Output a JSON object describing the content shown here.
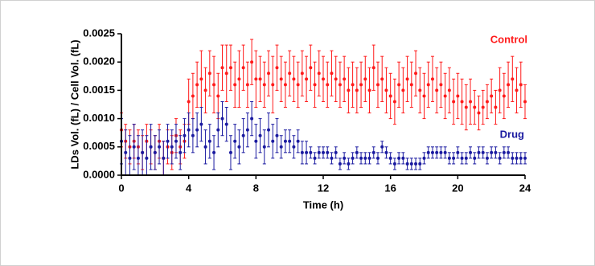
{
  "chart_data": {
    "type": "scatter-errorbar",
    "xlabel": "Time (h)",
    "ylabel": "LDs Vol. (fL) / Cell Vol. (fL)",
    "xlim": [
      0,
      24
    ],
    "xticks": [
      0,
      4,
      8,
      12,
      16,
      20,
      24
    ],
    "ylim": [
      0,
      0.0025
    ],
    "yticks": [
      {
        "value": 0,
        "label": "0.0000"
      },
      {
        "value": 0.0005,
        "label": "0.0005"
      },
      {
        "value": 0.001,
        "label": "0.0010"
      },
      {
        "value": 0.0015,
        "label": "0.0015"
      },
      {
        "value": 0.002,
        "label": "0.0020"
      },
      {
        "value": 0.0025,
        "label": "0.0025"
      }
    ],
    "x": [
      0,
      0.25,
      0.5,
      0.75,
      1,
      1.25,
      1.5,
      1.75,
      2,
      2.25,
      2.5,
      2.75,
      3,
      3.25,
      3.5,
      3.75,
      4,
      4.25,
      4.5,
      4.75,
      5,
      5.25,
      5.5,
      5.75,
      6,
      6.25,
      6.5,
      6.75,
      7,
      7.25,
      7.5,
      7.75,
      8,
      8.25,
      8.5,
      8.75,
      9,
      9.25,
      9.5,
      9.75,
      10,
      10.25,
      10.5,
      10.75,
      11,
      11.25,
      11.5,
      11.75,
      12,
      12.25,
      12.5,
      12.75,
      13,
      13.25,
      13.5,
      13.75,
      14,
      14.25,
      14.5,
      14.75,
      15,
      15.25,
      15.5,
      15.75,
      16,
      16.25,
      16.5,
      16.75,
      17,
      17.25,
      17.5,
      17.75,
      18,
      18.25,
      18.5,
      18.75,
      19,
      19.25,
      19.5,
      19.75,
      20,
      20.25,
      20.5,
      20.75,
      21,
      21.25,
      21.5,
      21.75,
      22,
      22.25,
      22.5,
      22.75,
      23,
      23.25,
      23.5,
      23.75,
      24
    ],
    "series": [
      {
        "name": "Control",
        "color": "#ff1a1a",
        "values": [
          0.0008,
          0.0006,
          0.0005,
          0.0006,
          0.0005,
          0.0004,
          0.0006,
          0.0005,
          0.0004,
          0.0006,
          0.0003,
          0.0005,
          0.0004,
          0.0007,
          0.0005,
          0.0006,
          0.0013,
          0.0014,
          0.0016,
          0.0017,
          0.0015,
          0.0018,
          0.0016,
          0.0014,
          0.0019,
          0.0018,
          0.0019,
          0.0016,
          0.0017,
          0.0019,
          0.0016,
          0.002,
          0.0017,
          0.0017,
          0.0016,
          0.0018,
          0.0016,
          0.0019,
          0.0017,
          0.0016,
          0.0018,
          0.0017,
          0.0016,
          0.0018,
          0.0017,
          0.0019,
          0.0016,
          0.0018,
          0.0017,
          0.0016,
          0.0018,
          0.0017,
          0.0016,
          0.0017,
          0.0015,
          0.0016,
          0.0015,
          0.0016,
          0.0017,
          0.0015,
          0.0019,
          0.0016,
          0.0017,
          0.0015,
          0.0014,
          0.0013,
          0.0016,
          0.0015,
          0.0017,
          0.0016,
          0.0018,
          0.0015,
          0.0014,
          0.0016,
          0.0017,
          0.0015,
          0.0016,
          0.0014,
          0.0015,
          0.0013,
          0.0014,
          0.0013,
          0.0012,
          0.0013,
          0.0012,
          0.0011,
          0.0012,
          0.0013,
          0.0014,
          0.0012,
          0.0015,
          0.0014,
          0.0016,
          0.0017,
          0.0015,
          0.0016,
          0.0013
        ],
        "errors": [
          0.0003,
          0.0003,
          0.0003,
          0.0003,
          0.0003,
          0.0003,
          0.0003,
          0.0003,
          0.0003,
          0.0003,
          0.0003,
          0.0003,
          0.0003,
          0.0003,
          0.0003,
          0.0003,
          0.0004,
          0.0004,
          0.0004,
          0.0005,
          0.0004,
          0.0004,
          0.0005,
          0.0004,
          0.0004,
          0.0005,
          0.0004,
          0.0004,
          0.0005,
          0.0004,
          0.0004,
          0.0004,
          0.0005,
          0.0004,
          0.0004,
          0.0004,
          0.0005,
          0.0004,
          0.0004,
          0.0004,
          0.0004,
          0.0004,
          0.0004,
          0.0004,
          0.0004,
          0.0004,
          0.0004,
          0.0004,
          0.0004,
          0.0004,
          0.0004,
          0.0004,
          0.0004,
          0.0004,
          0.0004,
          0.0004,
          0.0004,
          0.0004,
          0.0004,
          0.0004,
          0.0004,
          0.0004,
          0.0004,
          0.0004,
          0.0004,
          0.0004,
          0.0004,
          0.0004,
          0.0004,
          0.0004,
          0.0004,
          0.0004,
          0.0004,
          0.0004,
          0.0004,
          0.0004,
          0.0004,
          0.0004,
          0.0004,
          0.0004,
          0.0004,
          0.0004,
          0.0004,
          0.0004,
          0.0003,
          0.0003,
          0.0003,
          0.0003,
          0.0003,
          0.0003,
          0.0004,
          0.0004,
          0.0004,
          0.0004,
          0.0004,
          0.0004,
          0.0003
        ]
      },
      {
        "name": "Drug",
        "color": "#1a1aa0",
        "values": [
          0.0006,
          0.0004,
          0.0003,
          0.0005,
          0.0003,
          0.0004,
          0.0003,
          0.0005,
          0.0004,
          0.0005,
          0.0003,
          0.0006,
          0.0005,
          0.0006,
          0.0004,
          0.0007,
          0.0008,
          0.0007,
          0.0008,
          0.0009,
          0.0005,
          0.0006,
          0.0004,
          0.0008,
          0.001,
          0.0009,
          0.0004,
          0.0006,
          0.0005,
          0.0007,
          0.0008,
          0.001,
          0.0006,
          0.0007,
          0.0005,
          0.0008,
          0.0006,
          0.0007,
          0.0005,
          0.0006,
          0.0006,
          0.0005,
          0.0006,
          0.0004,
          0.0004,
          0.0004,
          0.0003,
          0.0004,
          0.0004,
          0.0004,
          0.0003,
          0.0004,
          0.0002,
          0.0003,
          0.0002,
          0.0003,
          0.0004,
          0.0003,
          0.0003,
          0.0003,
          0.0004,
          0.0003,
          0.0005,
          0.0004,
          0.0003,
          0.0002,
          0.0003,
          0.0003,
          0.0002,
          0.0002,
          0.0002,
          0.0002,
          0.0003,
          0.0004,
          0.0004,
          0.0004,
          0.0004,
          0.0004,
          0.0003,
          0.0003,
          0.0004,
          0.0003,
          0.0003,
          0.0004,
          0.0003,
          0.0004,
          0.0004,
          0.0003,
          0.0004,
          0.0004,
          0.0003,
          0.0004,
          0.0004,
          0.0003,
          0.0003,
          0.0003,
          0.0003
        ],
        "errors": [
          0.0004,
          0.0004,
          0.0004,
          0.0004,
          0.0004,
          0.0004,
          0.0004,
          0.0004,
          0.0003,
          0.0003,
          0.0003,
          0.0003,
          0.0003,
          0.0003,
          0.0003,
          0.0003,
          0.0003,
          0.0003,
          0.0003,
          0.0003,
          0.0003,
          0.0003,
          0.0003,
          0.0003,
          0.0003,
          0.0003,
          0.0003,
          0.0003,
          0.0003,
          0.0003,
          0.0003,
          0.0003,
          0.0003,
          0.0003,
          0.0003,
          0.0003,
          0.0003,
          0.0003,
          0.0002,
          0.0002,
          0.0002,
          0.0002,
          0.0002,
          0.0002,
          0.0002,
          0.0001,
          0.0001,
          0.0001,
          0.0001,
          0.0001,
          0.0001,
          0.0001,
          0.0001,
          0.0001,
          0.0001,
          0.0001,
          0.0001,
          0.0001,
          0.0001,
          0.0001,
          0.0001,
          0.0001,
          0.0001,
          0.0001,
          0.0001,
          0.0001,
          0.0001,
          0.0001,
          0.0001,
          0.0001,
          0.0001,
          0.0001,
          0.0001,
          0.0001,
          0.0001,
          0.0001,
          0.0001,
          0.0001,
          0.0001,
          0.0001,
          0.0001,
          0.0001,
          0.0001,
          0.0001,
          0.0001,
          0.0001,
          0.0001,
          0.0001,
          0.0001,
          0.0001,
          0.0001,
          0.0001,
          0.0001,
          0.0001,
          0.0001,
          0.0001,
          0.0001
        ]
      }
    ]
  }
}
